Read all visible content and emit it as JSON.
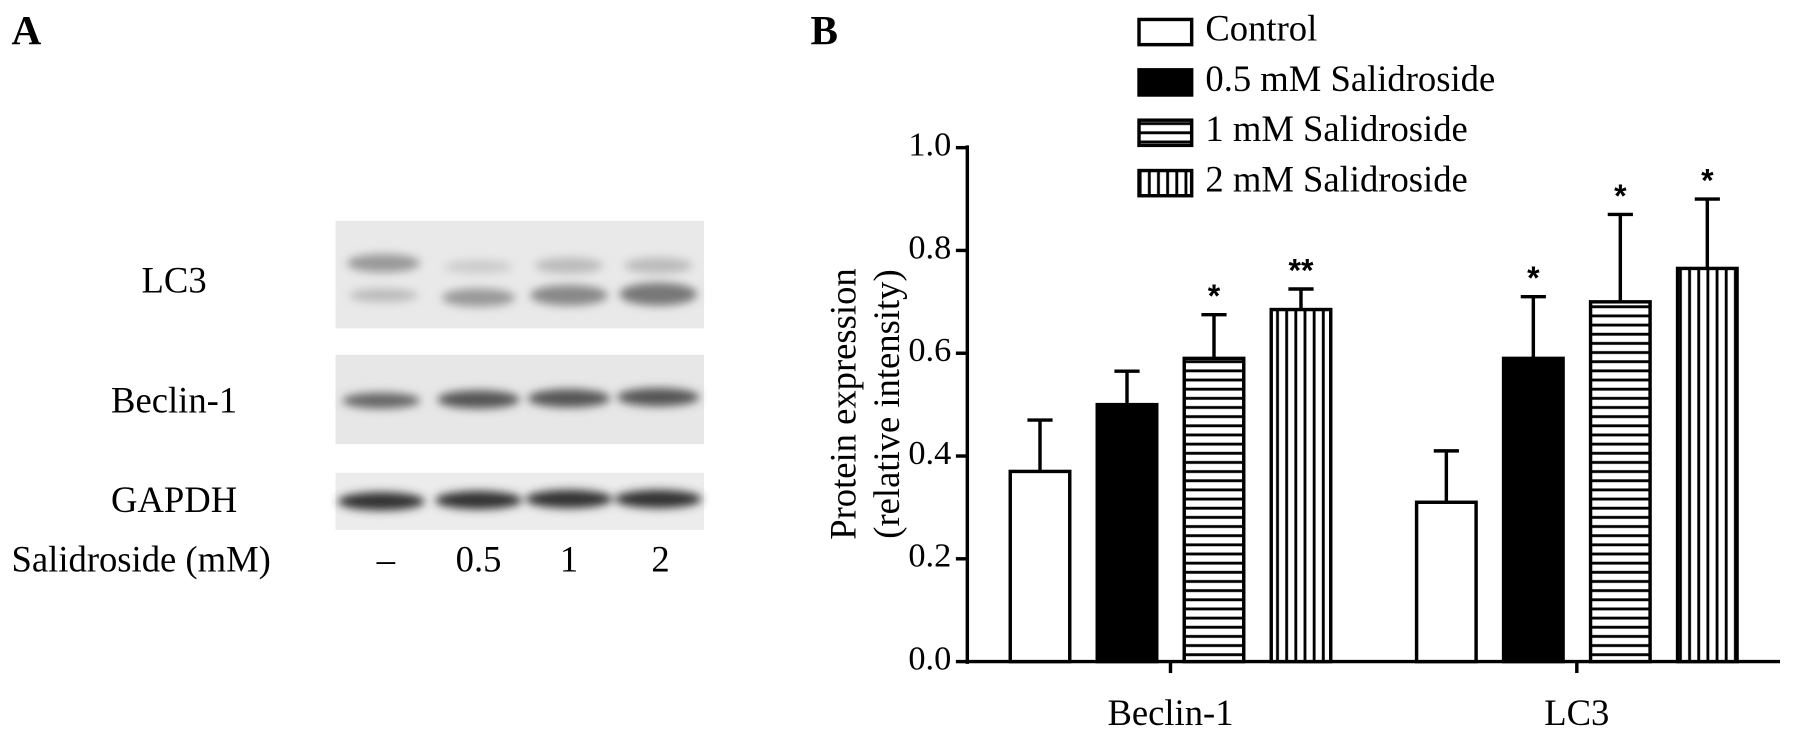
{
  "panel_a": {
    "label": "A",
    "rows": [
      "LC3",
      "Beclin-1",
      "GAPDH"
    ],
    "treatment_label": "Salidroside (mM)",
    "lanes": [
      "–",
      "0.5",
      "1",
      "2"
    ]
  },
  "chart_data": {
    "type": "bar",
    "panel_label": "B",
    "ylabel": [
      "Protein expression",
      "(relative intensity)"
    ],
    "categories": [
      "Beclin-1",
      "LC3"
    ],
    "series": [
      {
        "name": "Control",
        "color": "#ffffff",
        "pattern": "none",
        "values": [
          0.37,
          0.31
        ],
        "errors": [
          0.1,
          0.1
        ],
        "significance": [
          null,
          null
        ]
      },
      {
        "name": "0.5 mM Salidroside",
        "color": "#000000",
        "pattern": "solid",
        "values": [
          0.5,
          0.59
        ],
        "errors": [
          0.065,
          0.12
        ],
        "significance": [
          null,
          "*"
        ]
      },
      {
        "name": "1 mM Salidroside",
        "color": "#ffffff",
        "pattern": "horizontal",
        "values": [
          0.59,
          0.7
        ],
        "errors": [
          0.085,
          0.17
        ],
        "significance": [
          "*",
          "*"
        ]
      },
      {
        "name": "2 mM Salidroside",
        "color": "#ffffff",
        "pattern": "vertical",
        "values": [
          0.685,
          0.765
        ],
        "errors": [
          0.04,
          0.135
        ],
        "significance": [
          "**",
          "*"
        ]
      }
    ],
    "ylim": [
      0,
      1
    ],
    "yticks": [
      {
        "value": 0,
        "label": "0.0"
      },
      0.2,
      0.4,
      0.6,
      0.8,
      {
        "value": 1,
        "label": "1.0"
      }
    ],
    "legend": "top"
  }
}
